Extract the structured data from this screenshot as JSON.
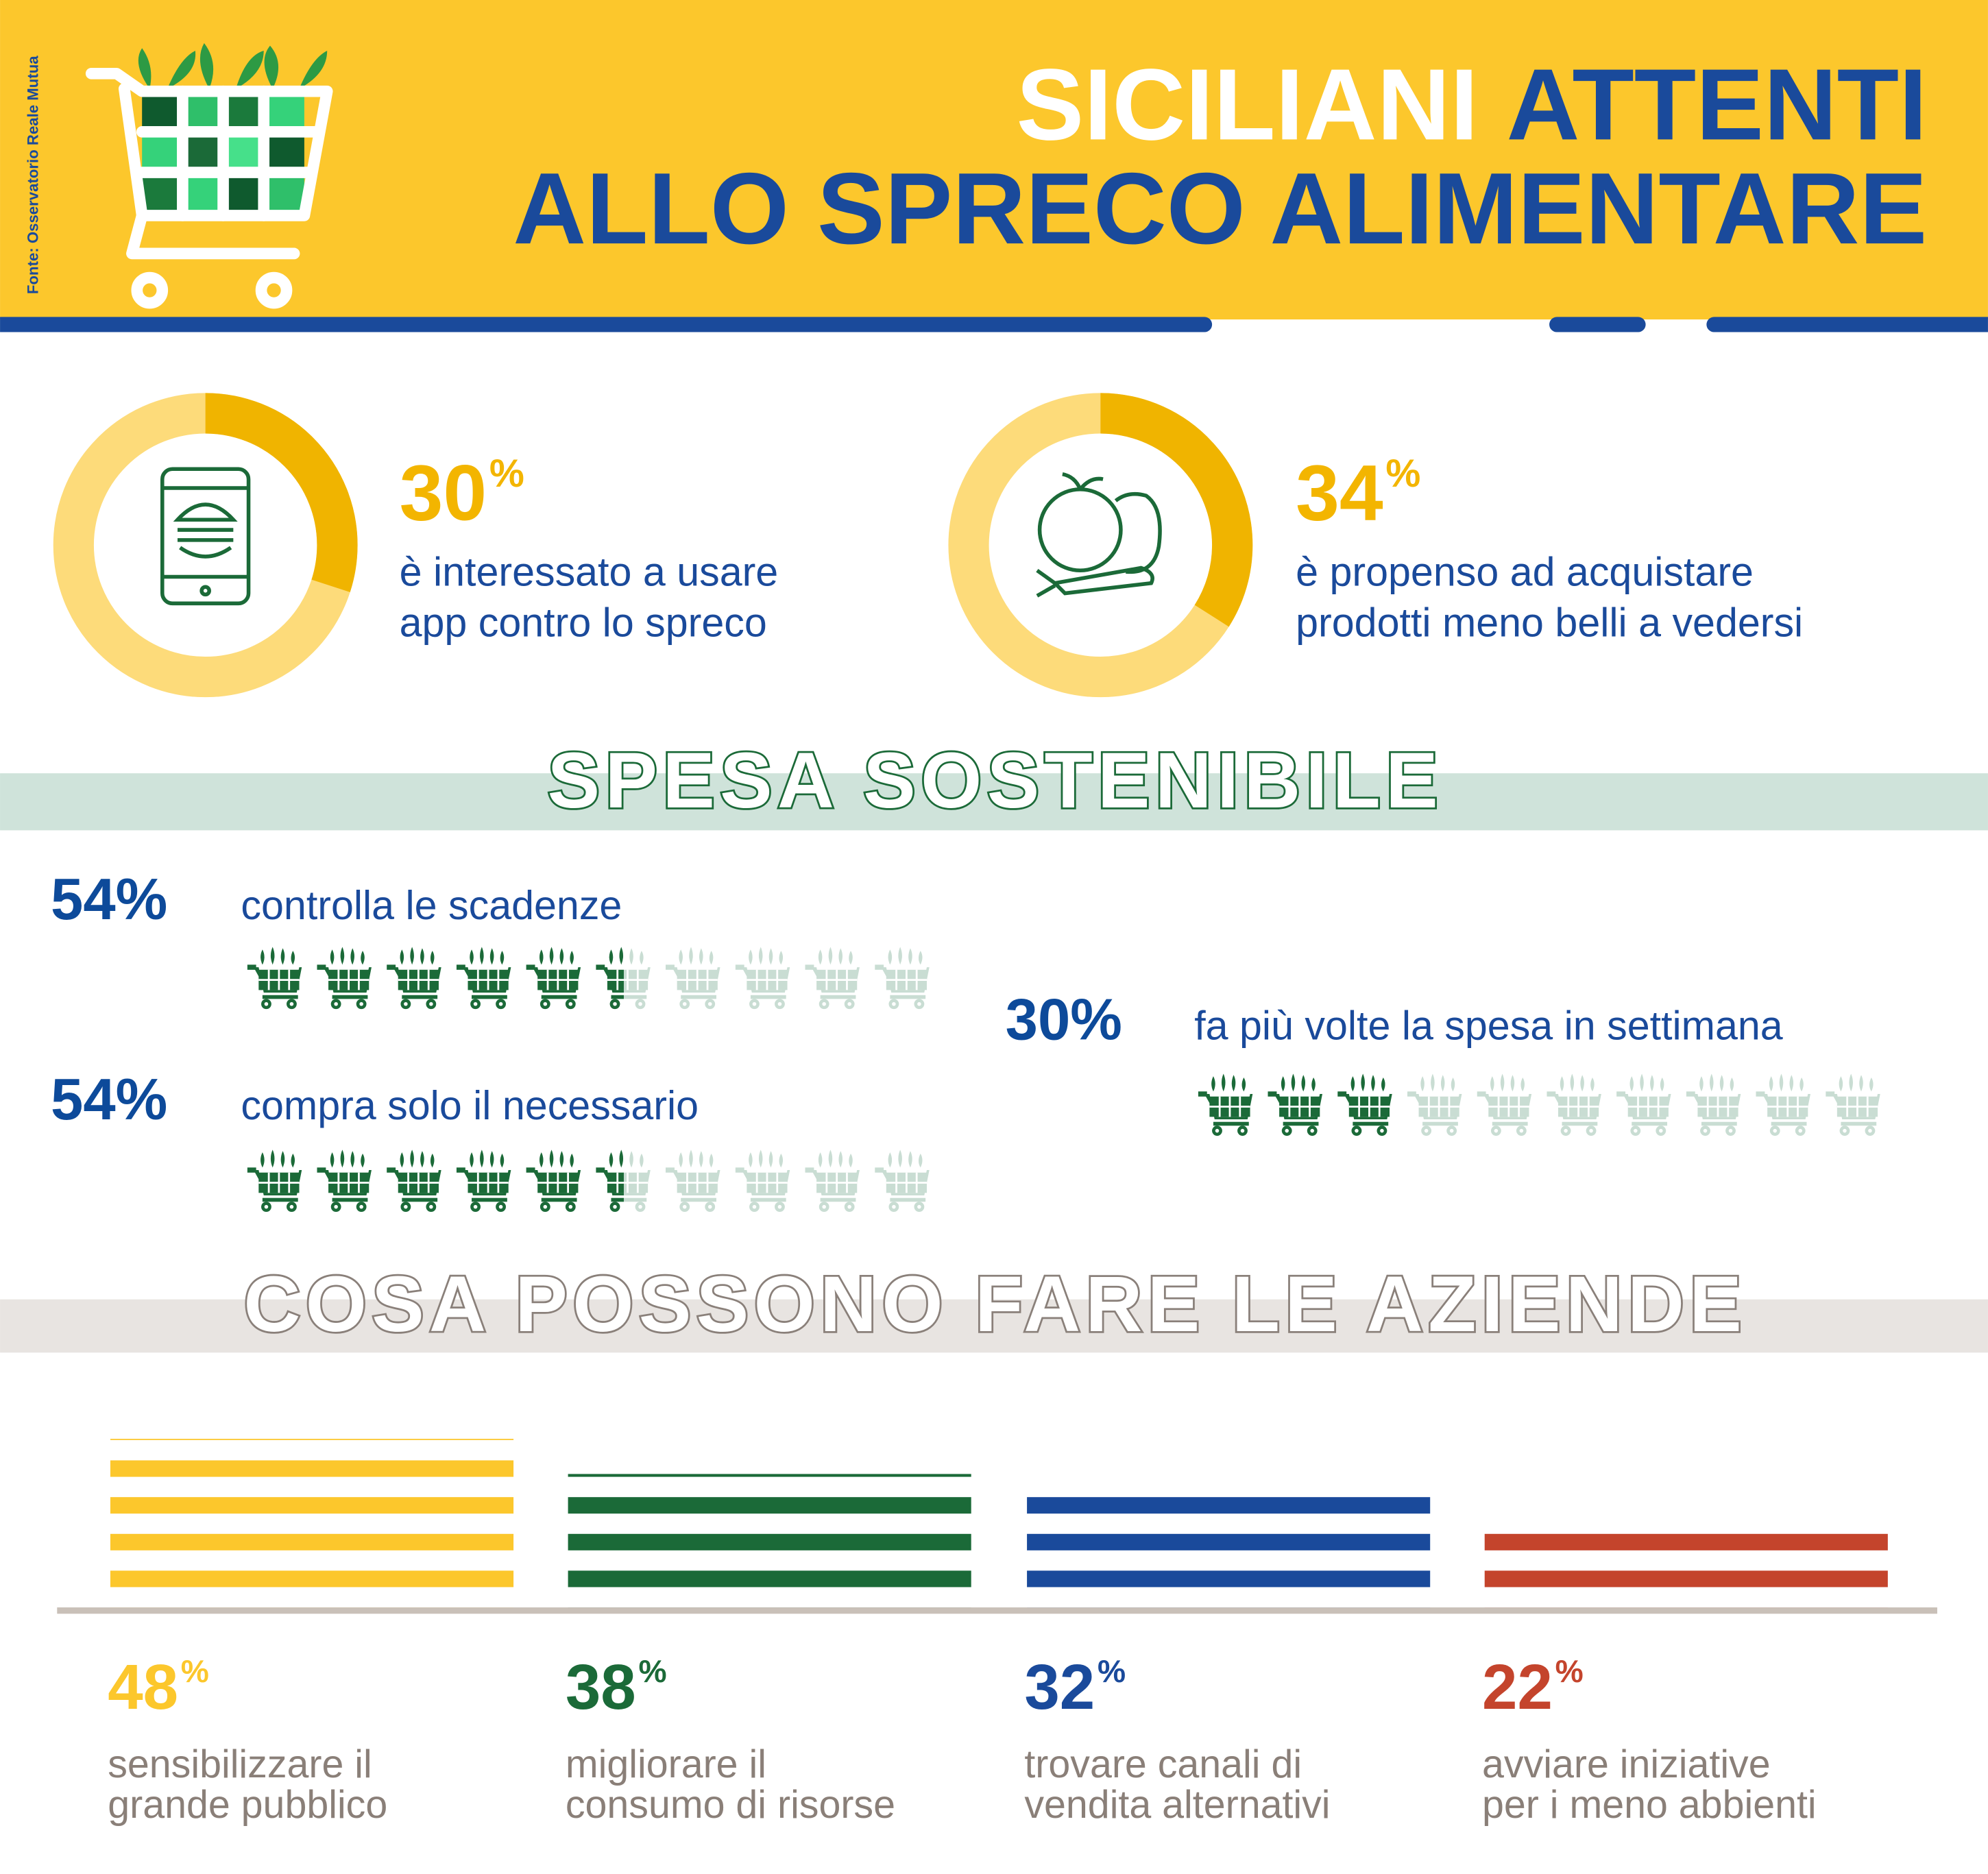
{
  "source": "Fonte: Osservatorio Reale Mutua",
  "header": {
    "title_white": "SICILIANI",
    "title_blue": "ATTENTI",
    "title_line2": "ALLO SPRECO ALIMENTARE"
  },
  "highlights": [
    {
      "value": 30,
      "unit": "%",
      "text": [
        "è interessato a usare",
        "app contro lo spreco"
      ]
    },
    {
      "value": 34,
      "unit": "%",
      "text": [
        "è propenso ad acquistare",
        "prodotti meno belli a vedersi"
      ]
    }
  ],
  "spesa": {
    "title": "SPESA SOSTENIBILE",
    "items": [
      {
        "value": 54,
        "unit": "%",
        "text": "controlla le scadenze"
      },
      {
        "value": 54,
        "unit": "%",
        "text": "compra solo il necessario"
      },
      {
        "value": 30,
        "unit": "%",
        "text": "fa più volte la spesa in settimana"
      }
    ]
  },
  "aziende": {
    "title": "COSA POSSONO FARE LE AZIENDE",
    "items": [
      {
        "value": 48,
        "unit": "%",
        "color": "#fcc72c",
        "text": [
          "sensibilizzare il",
          "grande pubblico"
        ]
      },
      {
        "value": 38,
        "unit": "%",
        "color": "#1b6a38",
        "text": [
          "migliorare il",
          "consumo di risorse"
        ]
      },
      {
        "value": 32,
        "unit": "%",
        "color": "#1a4a9b",
        "text": [
          "trovare canali di",
          "vendita alternativi"
        ]
      },
      {
        "value": 22,
        "unit": "%",
        "color": "#c4442c",
        "text": [
          "avviare iniziative",
          "per i meno abbienti"
        ]
      }
    ]
  }
}
